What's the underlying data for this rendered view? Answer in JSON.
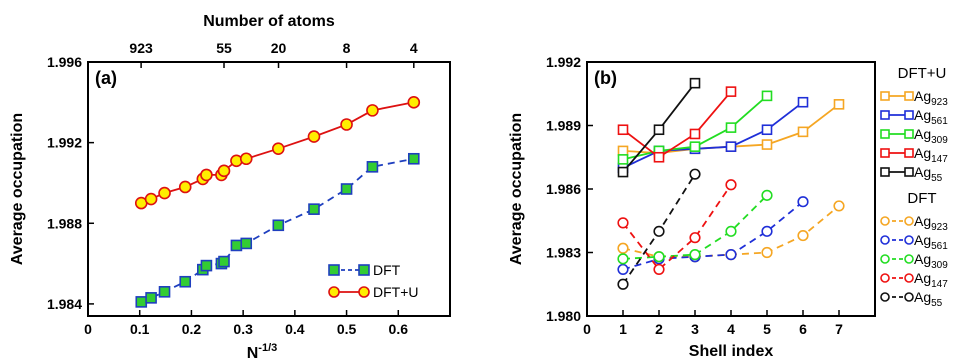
{
  "chart_data": [
    {
      "type": "line",
      "panel_label": "(a)",
      "xlabel": "N",
      "xlabel_sup": "-1/3",
      "ylabel": "Average occupation",
      "top_xlabel": "Number of atoms",
      "xlim": [
        0,
        0.7
      ],
      "ylim": [
        1.9834,
        1.996
      ],
      "x_ticks": [
        0,
        0.1,
        0.2,
        0.3,
        0.4,
        0.5,
        0.6
      ],
      "x_tick_labels": [
        "0",
        "0.1",
        "0.2",
        "0.3",
        "0.4",
        "0.5",
        "0.6"
      ],
      "y_ticks": [
        1.984,
        1.988,
        1.992,
        1.996
      ],
      "y_tick_labels": [
        "1.984",
        "1.988",
        "1.992",
        "1.996"
      ],
      "top_x_ticks": [
        0.1027,
        0.263,
        0.3684,
        0.5,
        0.63
      ],
      "top_x_tick_labels": [
        "923",
        "55",
        "20",
        "8",
        "4"
      ],
      "legend_position": "bottom-right",
      "series": [
        {
          "name": "DFT",
          "style": "dashed",
          "line_color": "#1f3fbf",
          "marker": "square",
          "marker_fill": "#33cc33",
          "marker_edge": "#1f3fbf",
          "x": [
            0.103,
            0.122,
            0.148,
            0.188,
            0.222,
            0.229,
            0.258,
            0.263,
            0.287,
            0.306,
            0.368,
            0.437,
            0.5,
            0.55,
            0.63
          ],
          "y": [
            1.9841,
            1.9843,
            1.9846,
            1.9851,
            1.9857,
            1.9859,
            1.986,
            1.9861,
            1.9869,
            1.987,
            1.9879,
            1.9887,
            1.9897,
            1.9908,
            1.9912
          ]
        },
        {
          "name": "DFT+U",
          "style": "solid",
          "line_color": "#dd1111",
          "marker": "circle",
          "marker_fill": "#ffee00",
          "marker_edge": "#dd1111",
          "x": [
            0.103,
            0.122,
            0.148,
            0.188,
            0.222,
            0.229,
            0.258,
            0.263,
            0.287,
            0.306,
            0.368,
            0.437,
            0.5,
            0.55,
            0.63
          ],
          "y": [
            1.989,
            1.9892,
            1.9895,
            1.9898,
            1.9902,
            1.9904,
            1.9904,
            1.9906,
            1.9911,
            1.9912,
            1.9917,
            1.9923,
            1.9929,
            1.9936,
            1.994
          ]
        }
      ]
    },
    {
      "type": "line",
      "panel_label": "(b)",
      "xlabel": "Shell index",
      "ylabel": "Average occupation",
      "xlim": [
        0,
        8
      ],
      "ylim": [
        1.98,
        1.992
      ],
      "x_ticks": [
        0,
        1,
        2,
        3,
        4,
        5,
        6,
        7
      ],
      "x_tick_labels": [
        "0",
        "1",
        "2",
        "3",
        "4",
        "5",
        "6",
        "7"
      ],
      "y_ticks": [
        1.98,
        1.983,
        1.986,
        1.989,
        1.992
      ],
      "y_tick_labels": [
        "1.980",
        "1.983",
        "1.986",
        "1.989",
        "1.992"
      ],
      "legend_position": "right",
      "legend_groups": [
        {
          "title": "DFT+U",
          "style": "solid",
          "marker": "square",
          "series": [
            {
              "name": "Ag",
              "sub": "923",
              "color": "#f5a623",
              "x": [
                1,
                2,
                3,
                4,
                5,
                6,
                7
              ],
              "y": [
                1.9878,
                1.9877,
                1.9879,
                1.988,
                1.9881,
                1.9887,
                1.99
              ]
            },
            {
              "name": "Ag",
              "sub": "561",
              "color": "#1f2fd8",
              "x": [
                1,
                2,
                3,
                4,
                5,
                6
              ],
              "y": [
                1.987,
                1.9878,
                1.9879,
                1.988,
                1.9888,
                1.9901
              ]
            },
            {
              "name": "Ag",
              "sub": "309",
              "color": "#22dd22",
              "x": [
                1,
                2,
                3,
                4,
                5
              ],
              "y": [
                1.9874,
                1.9878,
                1.988,
                1.9889,
                1.9904
              ]
            },
            {
              "name": "Ag",
              "sub": "147",
              "color": "#ee1111",
              "x": [
                1,
                2,
                3,
                4
              ],
              "y": [
                1.9888,
                1.9875,
                1.9886,
                1.9906
              ]
            },
            {
              "name": "Ag",
              "sub": "55",
              "color": "#111111",
              "x": [
                1,
                2,
                3
              ],
              "y": [
                1.9868,
                1.9888,
                1.991
              ]
            }
          ]
        },
        {
          "title": "DFT",
          "style": "dashed",
          "marker": "circle",
          "series": [
            {
              "name": "Ag",
              "sub": "923",
              "color": "#f5a623",
              "x": [
                1,
                2,
                3,
                4,
                5,
                6,
                7
              ],
              "y": [
                1.9832,
                1.9828,
                1.9828,
                1.9829,
                1.983,
                1.9838,
                1.9852
              ]
            },
            {
              "name": "Ag",
              "sub": "561",
              "color": "#1f2fd8",
              "x": [
                1,
                2,
                3,
                4,
                5,
                6
              ],
              "y": [
                1.9822,
                1.9827,
                1.9828,
                1.9829,
                1.984,
                1.9854
              ]
            },
            {
              "name": "Ag",
              "sub": "309",
              "color": "#22dd22",
              "x": [
                1,
                2,
                3,
                4,
                5
              ],
              "y": [
                1.9827,
                1.9828,
                1.9829,
                1.984,
                1.9857
              ]
            },
            {
              "name": "Ag",
              "sub": "147",
              "color": "#ee1111",
              "x": [
                1,
                2,
                3,
                4
              ],
              "y": [
                1.9844,
                1.9822,
                1.9837,
                1.9862
              ]
            },
            {
              "name": "Ag",
              "sub": "55",
              "color": "#111111",
              "x": [
                1,
                2,
                3
              ],
              "y": [
                1.9815,
                1.984,
                1.9867
              ]
            }
          ]
        }
      ]
    }
  ]
}
